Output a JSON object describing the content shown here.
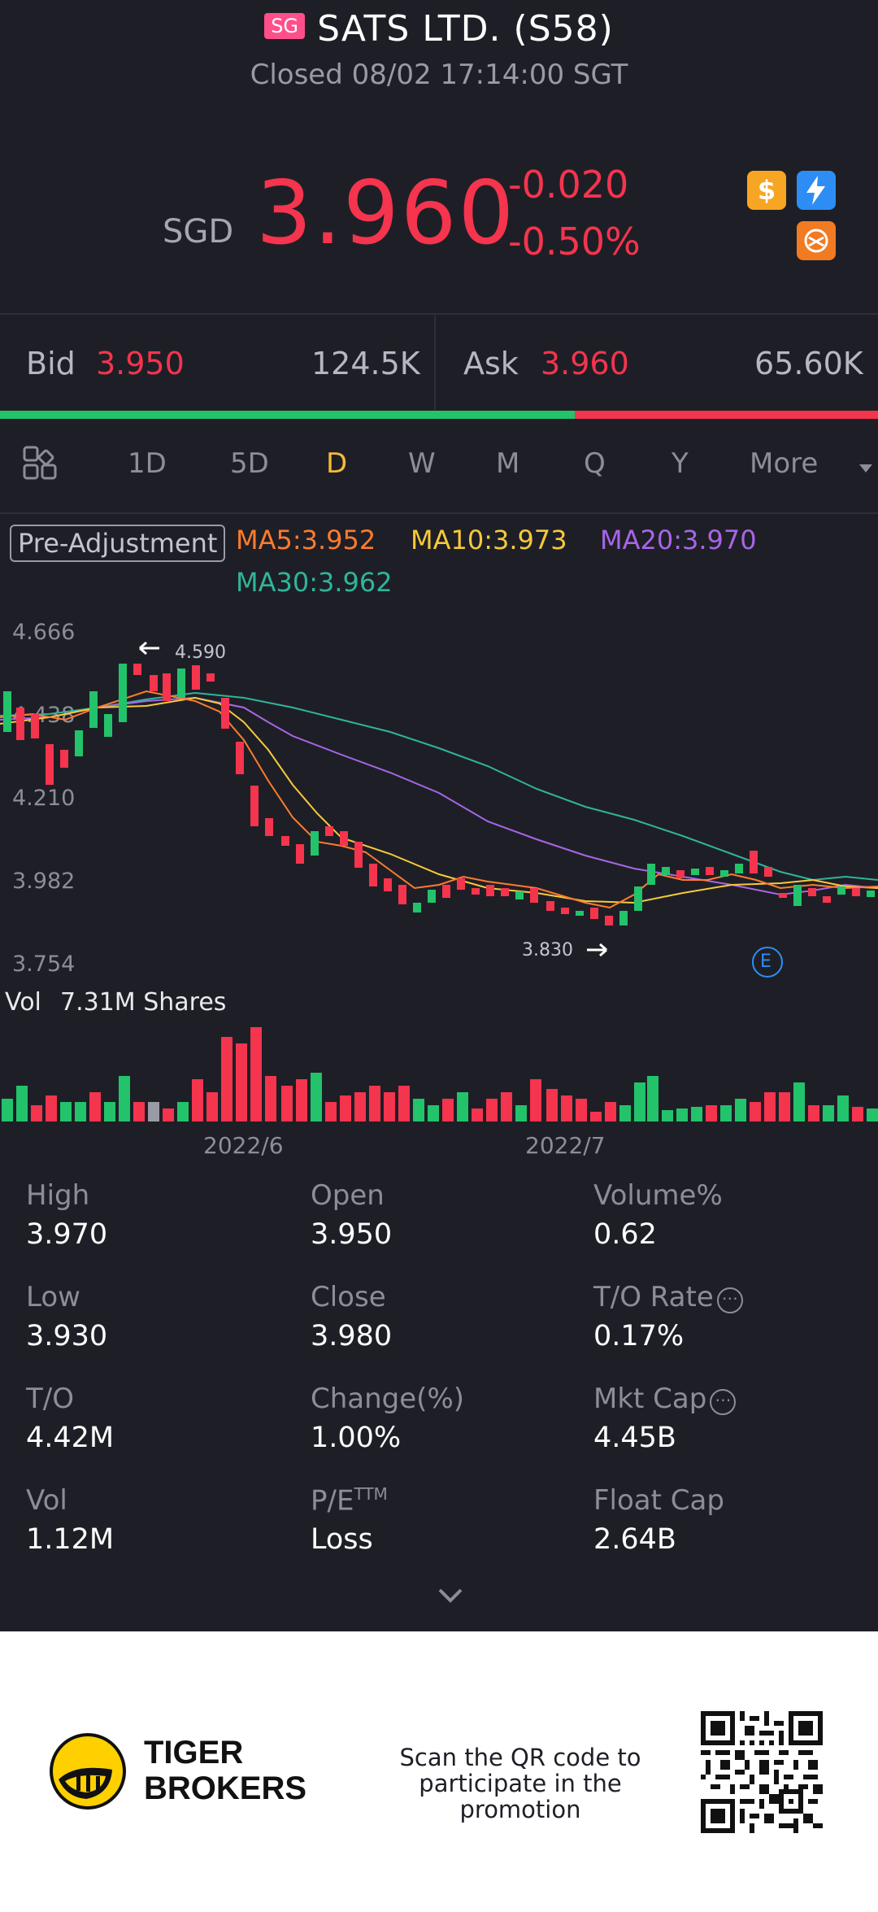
{
  "header": {
    "badge": "SG",
    "title": "SATS LTD. (S58)",
    "status": "Closed 08/02 17:14:00 SGT"
  },
  "quote": {
    "currency": "SGD",
    "price": "3.960",
    "change": "-0.020",
    "change_pct": "-0.50%",
    "badges": [
      "dollar-icon",
      "flash-icon",
      "swap-icon"
    ]
  },
  "bid": {
    "label": "Bid",
    "price": "3.950",
    "volume": "124.5K"
  },
  "ask": {
    "label": "Ask",
    "price": "3.960",
    "volume": "65.60K"
  },
  "bid_ask_ratio": 0.655,
  "tabs": [
    {
      "label": "1D"
    },
    {
      "label": "5D"
    },
    {
      "label": "D",
      "active": true
    },
    {
      "label": "W"
    },
    {
      "label": "M"
    },
    {
      "label": "Q"
    },
    {
      "label": "Y"
    },
    {
      "label": "More"
    }
  ],
  "indicators": {
    "pre_adjustment": "Pre-Adjustment",
    "ma5": "MA5:3.952",
    "ma10": "MA10:3.973",
    "ma20": "MA20:3.970",
    "ma30": "MA30:3.962"
  },
  "chart_axis": [
    "4.666",
    "4.438",
    "4.210",
    "3.982",
    "3.754"
  ],
  "chart_marks": {
    "high_label": "4.590",
    "low_label": "3.830",
    "event_badge": "E"
  },
  "volume": {
    "label": "Vol",
    "value": "7.31M Shares"
  },
  "dates": [
    "2022/6",
    "2022/7"
  ],
  "colors": {
    "up": "#22c36b",
    "down": "#f5344e",
    "ma5": "#ff7b2e",
    "ma10": "#f6c93b",
    "ma20": "#a865e8",
    "ma30": "#2fb59a",
    "active_tab": "#f6b93b"
  },
  "stats": [
    {
      "label": "High",
      "value": "3.970"
    },
    {
      "label": "Open",
      "value": "3.950"
    },
    {
      "label": "Volume%",
      "value": "0.62"
    },
    {
      "label": "Low",
      "value": "3.930"
    },
    {
      "label": "Close",
      "value": "3.980"
    },
    {
      "label": "T/O Rate",
      "value": "0.17%"
    },
    {
      "label": "T/O",
      "value": "4.42M"
    },
    {
      "label": "Change(%)",
      "value": "1.00%"
    },
    {
      "label": "Mkt Cap",
      "value": "4.45B"
    },
    {
      "label": "Vol",
      "value": "1.12M"
    },
    {
      "label": "P/E",
      "label_sup": "TTM",
      "value": "Loss"
    },
    {
      "label": "Float Cap",
      "value": "2.64B"
    }
  ],
  "footer": {
    "brand_line1": "TIGER",
    "brand_line2": "BROKERS",
    "promo": "Scan the QR code to participate in the promotion"
  }
}
